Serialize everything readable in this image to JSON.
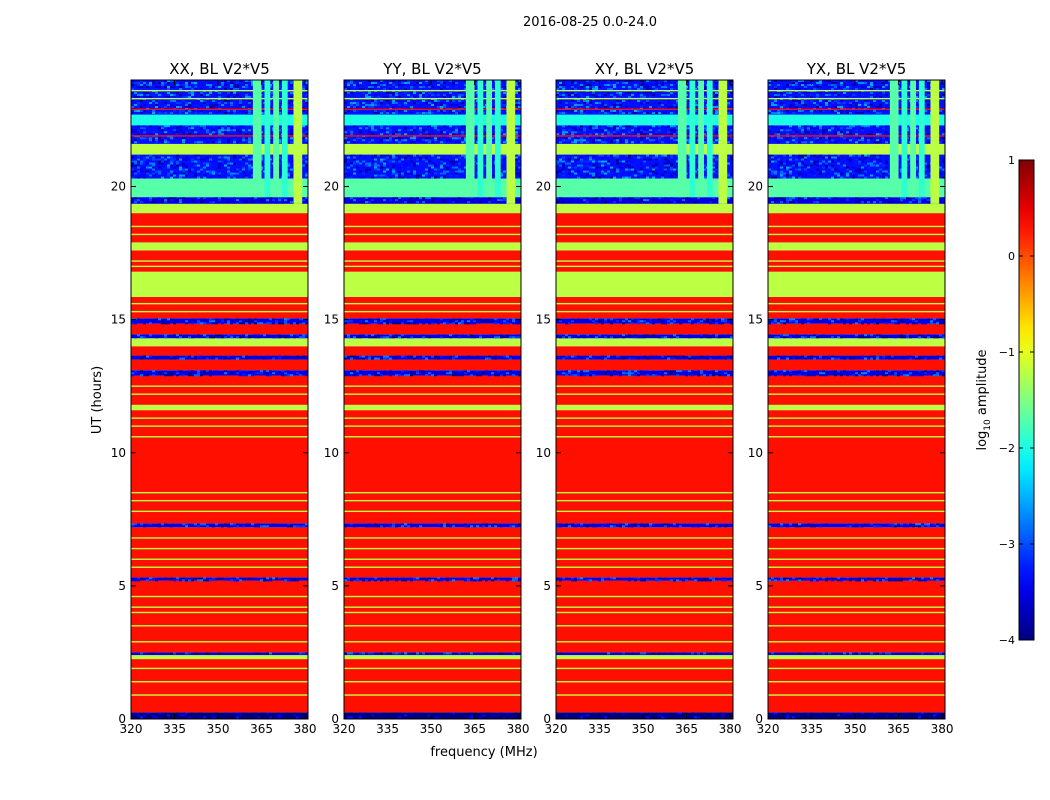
{
  "chart_data": {
    "type": "heatmap",
    "suptitle": "2016-08-25 0.0-24.0",
    "xlabel": "frequency (MHz)",
    "ylabel": "UT (hours)",
    "xlim": [
      320,
      381
    ],
    "ylim": [
      0,
      24
    ],
    "xticks": [
      320,
      335,
      350,
      365,
      380
    ],
    "yticks": [
      0,
      5,
      10,
      15,
      20
    ],
    "panels": [
      {
        "title": "XX, BL V2*V5"
      },
      {
        "title": "YY, BL V2*V5"
      },
      {
        "title": "XY, BL V2*V5"
      },
      {
        "title": "YX, BL V2*V5"
      }
    ],
    "colorbar": {
      "label_prefix": "log",
      "label_sub": "10",
      "label_suffix": " amplitude",
      "range": [
        -4,
        1
      ],
      "ticks": [
        1,
        0,
        -1,
        -2,
        -3,
        -4
      ],
      "tick_labels": [
        "1",
        "0",
        "−1",
        "−2",
        "−3",
        "−4"
      ],
      "colormap": "jet"
    },
    "bands": [
      {
        "from": 0.0,
        "to": 0.25,
        "level": -4,
        "note": "noise"
      },
      {
        "from": 0.25,
        "to": 2.25,
        "level": 0.3
      },
      {
        "from": 2.25,
        "to": 2.4,
        "level": -1.2
      },
      {
        "from": 2.4,
        "to": 2.5,
        "level": -3.5,
        "note": "noise"
      },
      {
        "from": 2.5,
        "to": 5.2,
        "level": 0.3
      },
      {
        "from": 5.2,
        "to": 5.32,
        "level": -3.5,
        "note": "noise"
      },
      {
        "from": 5.32,
        "to": 7.2,
        "level": 0.3
      },
      {
        "from": 7.2,
        "to": 7.35,
        "level": -3.5,
        "note": "noise"
      },
      {
        "from": 7.35,
        "to": 11.6,
        "level": 0.3
      },
      {
        "from": 11.6,
        "to": 11.8,
        "level": -1.2
      },
      {
        "from": 11.8,
        "to": 12.9,
        "level": 0.3
      },
      {
        "from": 12.9,
        "to": 13.1,
        "level": -3.5,
        "note": "noise"
      },
      {
        "from": 13.1,
        "to": 13.5,
        "level": 0.3
      },
      {
        "from": 13.5,
        "to": 13.65,
        "level": -3.5,
        "note": "noise"
      },
      {
        "from": 13.65,
        "to": 14.0,
        "level": 0.3
      },
      {
        "from": 14.0,
        "to": 14.3,
        "level": -1.2
      },
      {
        "from": 14.3,
        "to": 14.45,
        "level": -3.5,
        "note": "noise"
      },
      {
        "from": 14.45,
        "to": 14.85,
        "level": 0.3
      },
      {
        "from": 14.85,
        "to": 15.05,
        "level": -3.5,
        "note": "noise"
      },
      {
        "from": 15.05,
        "to": 15.85,
        "level": 0.3
      },
      {
        "from": 15.85,
        "to": 16.8,
        "level": -1.2
      },
      {
        "from": 16.8,
        "to": 17.6,
        "level": 0.3
      },
      {
        "from": 17.6,
        "to": 17.9,
        "level": -1.2
      },
      {
        "from": 17.9,
        "to": 19.0,
        "level": 0.3
      },
      {
        "from": 19.0,
        "to": 19.35,
        "level": -1.2
      },
      {
        "from": 19.35,
        "to": 19.6,
        "level": -3.5,
        "note": "noise"
      },
      {
        "from": 19.6,
        "to": 20.3,
        "level": -1.7
      },
      {
        "from": 20.3,
        "to": 21.2,
        "level": -3.3,
        "note": "noise"
      },
      {
        "from": 21.2,
        "to": 21.6,
        "level": -1.2
      },
      {
        "from": 21.6,
        "to": 22.3,
        "level": -3.3,
        "note": "noise"
      },
      {
        "from": 22.3,
        "to": 22.7,
        "level": -2.0
      },
      {
        "from": 22.7,
        "to": 24.0,
        "level": -3.3,
        "note": "noise"
      }
    ],
    "thin_lines": [
      {
        "y": 0.9,
        "level": -1.2
      },
      {
        "y": 1.4,
        "level": -1.2
      },
      {
        "y": 1.9,
        "level": -1.2
      },
      {
        "y": 2.9,
        "level": -1.2
      },
      {
        "y": 3.5,
        "level": -1.2
      },
      {
        "y": 4.0,
        "level": -1.2
      },
      {
        "y": 4.2,
        "level": -1.2
      },
      {
        "y": 4.6,
        "level": -1.2
      },
      {
        "y": 5.7,
        "level": -1.2
      },
      {
        "y": 6.0,
        "level": -1.2
      },
      {
        "y": 6.4,
        "level": -1.2
      },
      {
        "y": 6.8,
        "level": -1.2
      },
      {
        "y": 7.8,
        "level": -1.2
      },
      {
        "y": 8.2,
        "level": -1.2
      },
      {
        "y": 8.5,
        "level": -1.2
      },
      {
        "y": 10.6,
        "level": -1.2
      },
      {
        "y": 11.0,
        "level": -1.2
      },
      {
        "y": 11.3,
        "level": -1.2
      },
      {
        "y": 12.2,
        "level": -1.2
      },
      {
        "y": 12.5,
        "level": -1.2
      },
      {
        "y": 15.3,
        "level": -1.2
      },
      {
        "y": 15.6,
        "level": -1.2
      },
      {
        "y": 17.0,
        "level": -1.2
      },
      {
        "y": 17.2,
        "level": -1.2
      },
      {
        "y": 18.2,
        "level": -1.2
      },
      {
        "y": 18.5,
        "level": -1.2
      },
      {
        "y": 21.9,
        "level": 0.3
      },
      {
        "y": 22.9,
        "level": 0.3
      },
      {
        "y": 23.3,
        "level": -1.2
      },
      {
        "y": 23.6,
        "level": -1.2
      }
    ],
    "rfi_columns": [
      {
        "from": 362,
        "to": 365,
        "y_from": 19.6,
        "y_to": 24,
        "level": -1.7
      },
      {
        "from": 366,
        "to": 368,
        "y_from": 19.6,
        "y_to": 24,
        "level": -1.9
      },
      {
        "from": 369,
        "to": 371,
        "y_from": 19.6,
        "y_to": 24,
        "level": -1.7
      },
      {
        "from": 372,
        "to": 374,
        "y_from": 19.6,
        "y_to": 24,
        "level": -1.9
      },
      {
        "from": 376,
        "to": 379,
        "y_from": 19.35,
        "y_to": 24,
        "level": -1.2
      }
    ]
  }
}
